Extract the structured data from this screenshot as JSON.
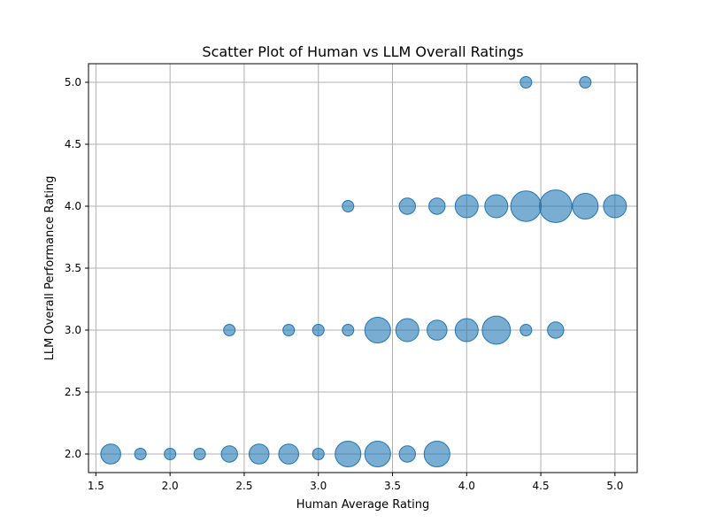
{
  "chart_data": {
    "type": "scatter",
    "title": "Scatter Plot of Human vs LLM Overall Ratings",
    "xlabel": "Human Average Rating",
    "ylabel": "LLM Overall Performance Rating",
    "xlim": [
      1.45,
      5.15
    ],
    "ylim": [
      1.85,
      5.15
    ],
    "xticks": [
      "1.5",
      "2.0",
      "2.5",
      "3.0",
      "3.5",
      "4.0",
      "4.5",
      "5.0"
    ],
    "yticks": [
      "2.0",
      "2.5",
      "3.0",
      "3.5",
      "4.0",
      "4.5",
      "5.0"
    ],
    "grid": true,
    "marker_color": "#1f77b4",
    "points": [
      {
        "x": 4.4,
        "y": 5.0,
        "count": 1
      },
      {
        "x": 4.8,
        "y": 5.0,
        "count": 1
      },
      {
        "x": 3.2,
        "y": 4.0,
        "count": 1
      },
      {
        "x": 3.6,
        "y": 4.0,
        "count": 2
      },
      {
        "x": 3.8,
        "y": 4.0,
        "count": 2
      },
      {
        "x": 4.0,
        "y": 4.0,
        "count": 4
      },
      {
        "x": 4.2,
        "y": 4.0,
        "count": 4
      },
      {
        "x": 4.4,
        "y": 4.0,
        "count": 7
      },
      {
        "x": 4.6,
        "y": 4.0,
        "count": 8
      },
      {
        "x": 4.8,
        "y": 4.0,
        "count": 5
      },
      {
        "x": 5.0,
        "y": 4.0,
        "count": 4
      },
      {
        "x": 2.4,
        "y": 3.0,
        "count": 1
      },
      {
        "x": 2.8,
        "y": 3.0,
        "count": 1
      },
      {
        "x": 3.0,
        "y": 3.0,
        "count": 1
      },
      {
        "x": 3.2,
        "y": 3.0,
        "count": 1
      },
      {
        "x": 3.4,
        "y": 3.0,
        "count": 5
      },
      {
        "x": 3.6,
        "y": 3.0,
        "count": 4
      },
      {
        "x": 3.8,
        "y": 3.0,
        "count": 3
      },
      {
        "x": 4.0,
        "y": 3.0,
        "count": 4
      },
      {
        "x": 4.2,
        "y": 3.0,
        "count": 6
      },
      {
        "x": 4.4,
        "y": 3.0,
        "count": 1
      },
      {
        "x": 4.6,
        "y": 3.0,
        "count": 2
      },
      {
        "x": 1.6,
        "y": 2.0,
        "count": 3
      },
      {
        "x": 1.8,
        "y": 2.0,
        "count": 1
      },
      {
        "x": 2.0,
        "y": 2.0,
        "count": 1
      },
      {
        "x": 2.2,
        "y": 2.0,
        "count": 1
      },
      {
        "x": 2.4,
        "y": 2.0,
        "count": 2
      },
      {
        "x": 2.6,
        "y": 2.0,
        "count": 3
      },
      {
        "x": 2.8,
        "y": 2.0,
        "count": 3
      },
      {
        "x": 3.0,
        "y": 2.0,
        "count": 1
      },
      {
        "x": 3.2,
        "y": 2.0,
        "count": 5
      },
      {
        "x": 3.4,
        "y": 2.0,
        "count": 5
      },
      {
        "x": 3.6,
        "y": 2.0,
        "count": 2
      },
      {
        "x": 3.8,
        "y": 2.0,
        "count": 5
      }
    ]
  }
}
